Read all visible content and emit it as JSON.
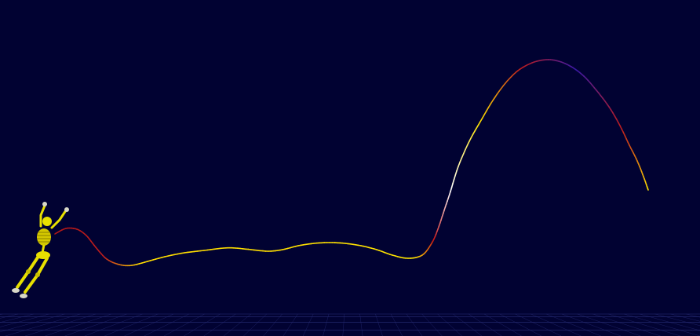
{
  "scene": {
    "background_color": "#010232",
    "floor_grid_color": "#2a2f7a",
    "figure_color": "#e8e000",
    "figure_joint_color": "#d8d8c8",
    "figure_icon": "skeleton-figure-icon",
    "trajectory_gradient_colors": [
      "#b01818",
      "#ffe400",
      "#ffffff",
      "#3a1aa8"
    ]
  }
}
